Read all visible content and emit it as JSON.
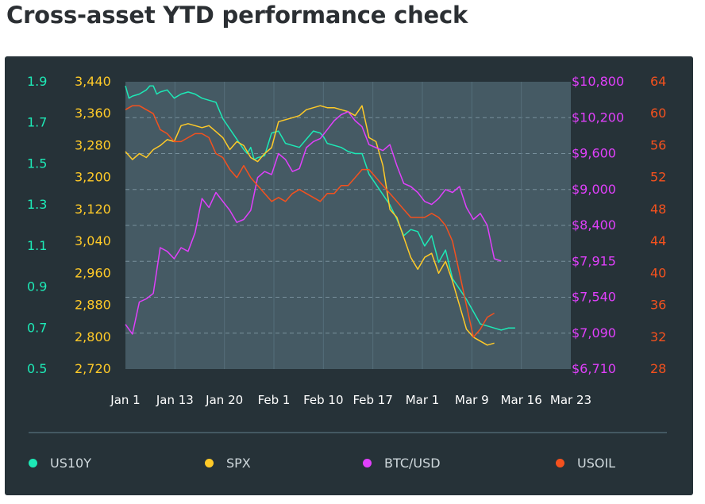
{
  "title": "Cross-asset YTD performance check",
  "colors": {
    "panel_bg": "#263238",
    "plot_bg": "#455a64",
    "grid": "#78909c",
    "us10y": "#1de9b6",
    "spx": "#ffca28",
    "btc": "#e040fb",
    "usoil": "#f4511e",
    "text": "#ffffff"
  },
  "chart_data": {
    "type": "line",
    "title": "Cross-asset YTD performance check",
    "x_tick_labels": [
      "Jan 1",
      "Jan 13",
      "Jan 20",
      "Feb 1",
      "Feb 10",
      "Feb 17",
      "Mar 1",
      "Mar 9",
      "Mar 16",
      "Mar 23"
    ],
    "axes": {
      "us10y": {
        "ticks": [
          "1.9",
          "1.7",
          "1.5",
          "1.3",
          "1.1",
          "0.9",
          "0.7",
          "0.5"
        ],
        "range": [
          0.5,
          1.9
        ]
      },
      "spx": {
        "ticks": [
          "3,440",
          "3,360",
          "3,280",
          "3,200",
          "3,120",
          "3,040",
          "2,960",
          "2,880",
          "2,800",
          "2,720"
        ],
        "range": [
          2720,
          3440
        ]
      },
      "btc": {
        "ticks": [
          "$10,800",
          "$10,200",
          "$9,600",
          "$9,000",
          "$8,400",
          "$7,915",
          "$7,540",
          "$7,090",
          "$6,710"
        ],
        "range": [
          6710,
          10800
        ]
      },
      "usoil": {
        "ticks": [
          "64",
          "60",
          "56",
          "52",
          "48",
          "44",
          "40",
          "36",
          "32",
          "28"
        ],
        "range": [
          28,
          64
        ]
      }
    },
    "series": [
      {
        "name": "US10Y",
        "axis": "us10y",
        "color": "#1de9b6",
        "x": [
          0.0,
          0.5,
          1.0,
          2.0,
          3.0,
          3.5,
          4.0,
          4.5,
          5.0,
          6.0,
          7.0,
          8.0,
          9.0,
          10.0,
          11.0,
          12.0,
          13.0,
          13.5,
          14.0,
          15.0,
          16.0,
          17.0,
          17.5,
          18.0,
          18.5,
          19.0,
          20.0,
          21.0,
          22.0,
          23.0,
          24.0,
          25.0,
          26.0,
          27.0,
          28.0,
          28.5,
          29.0,
          30.0,
          31.0,
          32.0,
          33.0,
          34.0,
          35.0,
          36.0,
          37.0,
          38.0,
          39.0,
          40.0,
          41.0,
          42.0,
          43.0,
          44.0,
          45.0,
          46.0,
          47.0,
          48.0,
          49.0,
          50.0,
          51.0,
          52.0,
          53.0,
          54.0,
          55.0,
          56.0
        ],
        "y": [
          1.88,
          1.82,
          1.83,
          1.84,
          1.86,
          1.88,
          1.88,
          1.84,
          1.85,
          1.86,
          1.82,
          1.84,
          1.85,
          1.84,
          1.82,
          1.81,
          1.8,
          1.76,
          1.72,
          1.67,
          1.62,
          1.57,
          1.55,
          1.58,
          1.52,
          1.53,
          1.54,
          1.65,
          1.66,
          1.6,
          1.59,
          1.58,
          1.62,
          1.66,
          1.65,
          1.63,
          1.6,
          1.59,
          1.58,
          1.56,
          1.55,
          1.55,
          1.45,
          1.4,
          1.35,
          1.3,
          1.23,
          1.15,
          1.18,
          1.17,
          1.1,
          1.15,
          1.02,
          1.08,
          0.94,
          0.89,
          0.84,
          0.78,
          0.72,
          0.71,
          0.7,
          0.69,
          0.7,
          0.7
        ]
      },
      {
        "name": "SPX",
        "axis": "spx",
        "color": "#ffca28",
        "x": [
          0.0,
          1.0,
          2.0,
          3.0,
          4.0,
          5.0,
          6.0,
          7.0,
          8.0,
          9.0,
          10.0,
          11.0,
          12.0,
          13.0,
          14.0,
          15.0,
          16.0,
          17.0,
          18.0,
          19.0,
          20.0,
          21.0,
          22.0,
          23.0,
          24.0,
          25.0,
          26.0,
          27.0,
          28.0,
          29.0,
          30.0,
          31.0,
          32.0,
          33.0,
          34.0,
          35.0,
          36.0,
          37.0,
          38.0,
          39.0,
          40.0,
          41.0,
          42.0,
          43.0,
          44.0,
          45.0,
          46.0,
          47.0,
          48.0,
          49.0,
          50.0,
          51.0,
          52.0,
          53.0
        ],
        "y": [
          3265,
          3245,
          3260,
          3250,
          3270,
          3280,
          3295,
          3290,
          3330,
          3335,
          3330,
          3325,
          3330,
          3315,
          3300,
          3270,
          3290,
          3280,
          3250,
          3240,
          3260,
          3275,
          3340,
          3345,
          3350,
          3355,
          3370,
          3375,
          3380,
          3375,
          3375,
          3370,
          3365,
          3355,
          3380,
          3300,
          3290,
          3230,
          3120,
          3100,
          3050,
          3000,
          2970,
          3000,
          3010,
          2960,
          2990,
          2940,
          2880,
          2820,
          2800,
          2790,
          2780,
          2785
        ]
      },
      {
        "name": "BTC/USD",
        "axis": "btc",
        "color": "#e040fb",
        "x": [
          0.0,
          1.0,
          2.0,
          3.0,
          4.0,
          5.0,
          6.0,
          7.0,
          8.0,
          9.0,
          10.0,
          11.0,
          12.0,
          13.0,
          14.0,
          15.0,
          16.0,
          17.0,
          18.0,
          19.0,
          20.0,
          21.0,
          22.0,
          23.0,
          24.0,
          25.0,
          26.0,
          27.0,
          28.0,
          29.0,
          30.0,
          31.0,
          32.0,
          33.0,
          34.0,
          35.0,
          36.0,
          37.0,
          38.0,
          39.0,
          40.0,
          41.0,
          42.0,
          43.0,
          44.0,
          45.0,
          46.0,
          47.0,
          48.0,
          49.0,
          50.0,
          51.0,
          52.0,
          53.0,
          54.0
        ],
        "y": [
          7200,
          7080,
          7480,
          7520,
          7580,
          8100,
          8050,
          7950,
          8100,
          8050,
          8300,
          8850,
          8700,
          8950,
          8800,
          8650,
          8450,
          8500,
          8650,
          9200,
          9300,
          9250,
          9600,
          9500,
          9300,
          9350,
          9700,
          9800,
          9850,
          10000,
          10150,
          10250,
          10300,
          10150,
          10050,
          9750,
          9700,
          9650,
          9750,
          9400,
          9100,
          9050,
          8950,
          8800,
          8750,
          8850,
          9000,
          8950,
          9050,
          8700,
          8500,
          8600,
          8400,
          7950,
          7920
        ]
      },
      {
        "name": "USOIL",
        "axis": "usoil",
        "color": "#f4511e",
        "x": [
          0.0,
          1.0,
          2.0,
          3.0,
          4.0,
          5.0,
          6.0,
          7.0,
          8.0,
          9.0,
          10.0,
          11.0,
          12.0,
          13.0,
          14.0,
          15.0,
          16.0,
          17.0,
          18.0,
          19.0,
          20.0,
          21.0,
          22.0,
          23.0,
          24.0,
          25.0,
          26.0,
          27.0,
          28.0,
          29.0,
          30.0,
          31.0,
          32.0,
          33.0,
          34.0,
          35.0,
          36.0,
          37.0,
          38.0,
          39.0,
          40.0,
          41.0,
          42.0,
          43.0,
          44.0,
          45.0,
          46.0,
          47.0,
          48.0,
          49.0,
          50.0,
          51.0,
          52.0,
          53.0
        ],
        "y": [
          60.5,
          61,
          61,
          60.5,
          60,
          58,
          57.5,
          56.5,
          56.5,
          57,
          57.5,
          57.5,
          57,
          55,
          54.5,
          53,
          52,
          53.5,
          52,
          51,
          50,
          49,
          49.5,
          49,
          50,
          50.5,
          50,
          49.5,
          49,
          50,
          50,
          51,
          51,
          52,
          53,
          53,
          52,
          51,
          50,
          49,
          48,
          47,
          47,
          47,
          47.5,
          47,
          46,
          44,
          40,
          36,
          32,
          33,
          34.5,
          35
        ]
      }
    ]
  },
  "legend": [
    {
      "label": "US10Y",
      "color": "#1de9b6"
    },
    {
      "label": "SPX",
      "color": "#ffca28"
    },
    {
      "label": "BTC/USD",
      "color": "#e040fb"
    },
    {
      "label": "USOIL",
      "color": "#f4511e"
    }
  ]
}
